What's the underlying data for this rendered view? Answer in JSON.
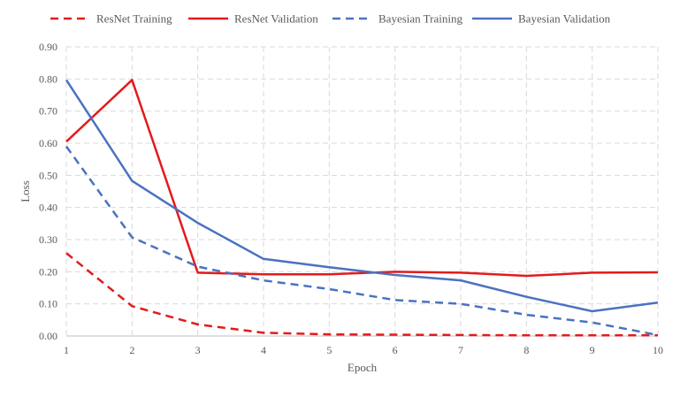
{
  "chart_data": {
    "type": "line",
    "title": "",
    "xlabel": "Epoch",
    "ylabel": "Loss",
    "x": [
      1,
      2,
      3,
      4,
      5,
      6,
      7,
      8,
      9,
      10
    ],
    "xlim": [
      1,
      10
    ],
    "ylim": [
      0,
      0.9
    ],
    "y_ticks": [
      "0.00",
      "0.10",
      "0.20",
      "0.30",
      "0.40",
      "0.50",
      "0.60",
      "0.70",
      "0.80",
      "0.90"
    ],
    "x_ticks": [
      "1",
      "2",
      "3",
      "4",
      "5",
      "6",
      "7",
      "8",
      "9",
      "10"
    ],
    "grid": true,
    "legend_position": "top",
    "series": [
      {
        "name": "ResNet Training",
        "color": "#e31a1c",
        "style": "dashed",
        "values": [
          0.258,
          0.093,
          0.036,
          0.01,
          0.005,
          0.004,
          0.003,
          0.002,
          0.002,
          0.002
        ]
      },
      {
        "name": "ResNet Validation",
        "color": "#e31a1c",
        "style": "solid",
        "values": [
          0.605,
          0.797,
          0.197,
          0.192,
          0.192,
          0.2,
          0.197,
          0.187,
          0.197,
          0.198
        ]
      },
      {
        "name": "Bayesian Training",
        "color": "#4a72c0",
        "style": "dashed",
        "values": [
          0.59,
          0.307,
          0.216,
          0.173,
          0.146,
          0.112,
          0.1,
          0.066,
          0.042,
          0.003
        ]
      },
      {
        "name": "Bayesian Validation",
        "color": "#4a72c0",
        "style": "solid",
        "values": [
          0.797,
          0.483,
          0.352,
          0.24,
          0.214,
          0.19,
          0.173,
          0.122,
          0.077,
          0.104
        ]
      }
    ]
  }
}
